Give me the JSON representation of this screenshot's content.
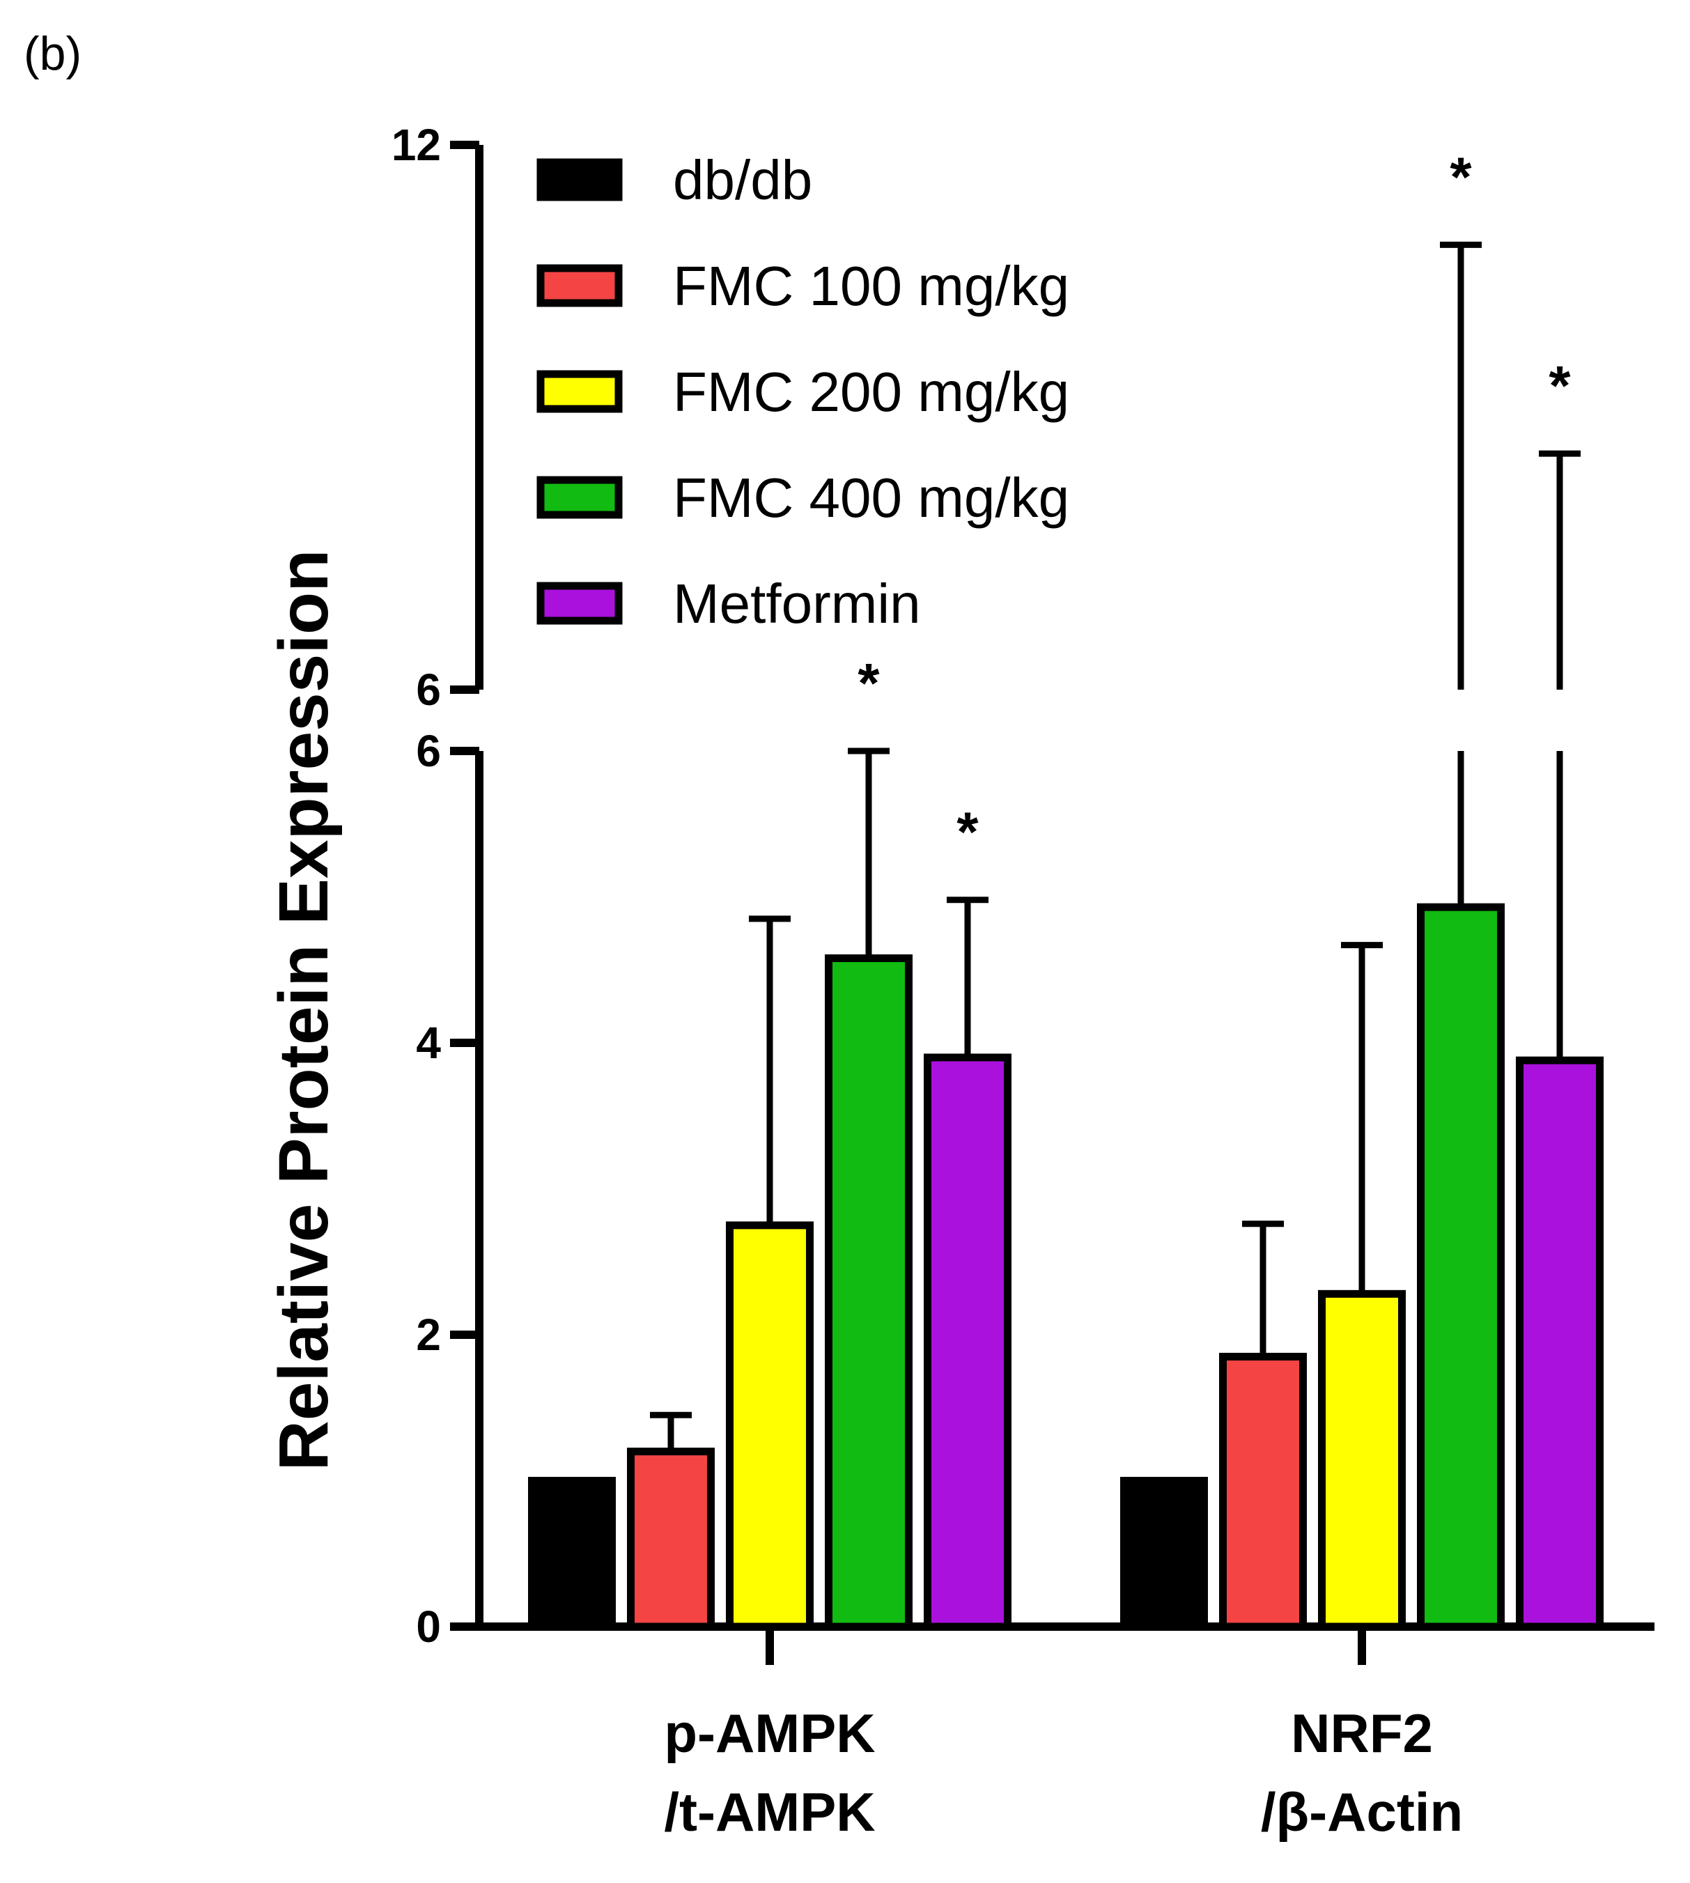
{
  "panel_label": "(b)",
  "chart_data": {
    "type": "bar",
    "ylabel": "Relative Protein Expression",
    "y_axis_break": true,
    "lower_segment_range": [
      0,
      6
    ],
    "upper_segment_range": [
      6,
      12
    ],
    "lower_ticks": [
      "0",
      "2",
      "4",
      "6"
    ],
    "upper_ticks": [
      "6",
      "12"
    ],
    "categories": [
      {
        "line1": "p-AMPK",
        "line2": "/t-AMPK"
      },
      {
        "line1": "NRF2",
        "line2": "/β-Actin"
      }
    ],
    "series": [
      {
        "name": "db/db",
        "color": "#000000",
        "values": [
          1.0,
          1.0
        ],
        "errors": [
          null,
          null
        ],
        "significant": [
          false,
          false
        ]
      },
      {
        "name": "FMC 100 mg/kg",
        "color": "#f44444",
        "values": [
          1.2,
          1.85
        ],
        "errors": [
          1.45,
          2.76
        ],
        "significant": [
          false,
          false
        ]
      },
      {
        "name": "FMC 200 mg/kg",
        "color": "#ffff00",
        "values": [
          2.75,
          2.28
        ],
        "errors": [
          4.85,
          4.67
        ],
        "significant": [
          false,
          false
        ]
      },
      {
        "name": "FMC 400 mg/kg",
        "color": "#11bb11",
        "values": [
          4.58,
          4.93
        ],
        "errors": [
          6.0,
          10.9
        ],
        "significant": [
          true,
          true
        ]
      },
      {
        "name": "Metformin",
        "color": "#aa11dd",
        "values": [
          3.9,
          3.88
        ],
        "errors": [
          4.98,
          8.6
        ],
        "significant": [
          true,
          true
        ]
      }
    ],
    "significance_marker": "*",
    "grid": false,
    "legend_position": "top"
  }
}
